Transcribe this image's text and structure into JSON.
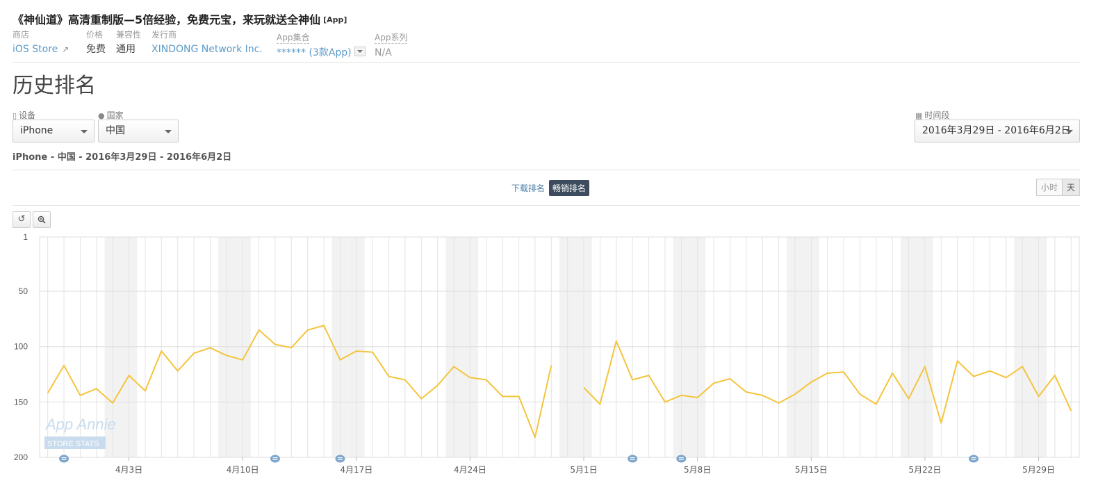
{
  "app": {
    "title": "《神仙道》高清重制版—5倍经验，免费元宝，来玩就送全神仙",
    "badge": "[App]"
  },
  "meta": {
    "store_label": "商店",
    "store_value": "iOS Store",
    "price_label": "价格",
    "price_value": "免费",
    "compat_label": "兼容性",
    "compat_value": "通用",
    "publisher_label": "发行商",
    "publisher_value": "XINDONG Network Inc.",
    "collection_label": "App集合",
    "collection_value": "****** (3款App)",
    "series_label": "App系列",
    "series_value": "N/A"
  },
  "section_title": "历史排名",
  "filters": {
    "device_label": "设备",
    "device_value": "iPhone",
    "country_label": "国家",
    "country_value": "中国",
    "period_label": "时间段",
    "period_value": "2016年3月29日 - 2016年6月2日"
  },
  "summary": "iPhone - 中国 - 2016年3月29日 - 2016年6月2日",
  "tabs": {
    "downloads": "下载排名",
    "grossing": "畅销排名"
  },
  "granularity": {
    "hour": "小时",
    "day": "天"
  },
  "watermark": {
    "line1": "App Annie",
    "line2": "STORE STATS"
  },
  "colors": {
    "line": "#f5c43c",
    "weekend": "#f2f2f2",
    "grid": "#e4e4e4"
  },
  "chart_data": {
    "type": "line",
    "title": "",
    "ylabel": "",
    "xlabel": "",
    "y_reversed": true,
    "ylim": [
      1,
      200
    ],
    "yticks": [
      1,
      50,
      100,
      150,
      200
    ],
    "xticks": [
      "4月3日",
      "4月10日",
      "4月17日",
      "4月24日",
      "5月1日",
      "5月8日",
      "5月15日",
      "5月22日",
      "5月29日"
    ],
    "x_start": "2016-03-29",
    "x_end": "2016-06-02",
    "grid": true,
    "series": [
      {
        "name": "",
        "values": [
          142,
          117,
          144,
          138,
          151,
          126,
          140,
          104,
          122,
          106,
          101,
          108,
          112,
          85,
          98,
          101,
          85,
          81,
          112,
          104,
          105,
          127,
          130,
          147,
          135,
          118,
          128,
          130,
          145,
          145,
          182,
          117,
          null,
          137,
          152,
          95,
          130,
          126,
          150,
          144,
          146,
          133,
          129,
          141,
          144,
          151,
          143,
          132,
          124,
          123,
          143,
          152,
          124,
          147,
          118,
          169,
          113,
          127,
          122,
          128,
          118,
          145,
          126,
          158
        ]
      }
    ],
    "annotation_dates": [
      "2016-03-30",
      "2016-04-12",
      "2016-04-16",
      "2016-05-04",
      "2016-05-07",
      "2016-05-25"
    ]
  }
}
